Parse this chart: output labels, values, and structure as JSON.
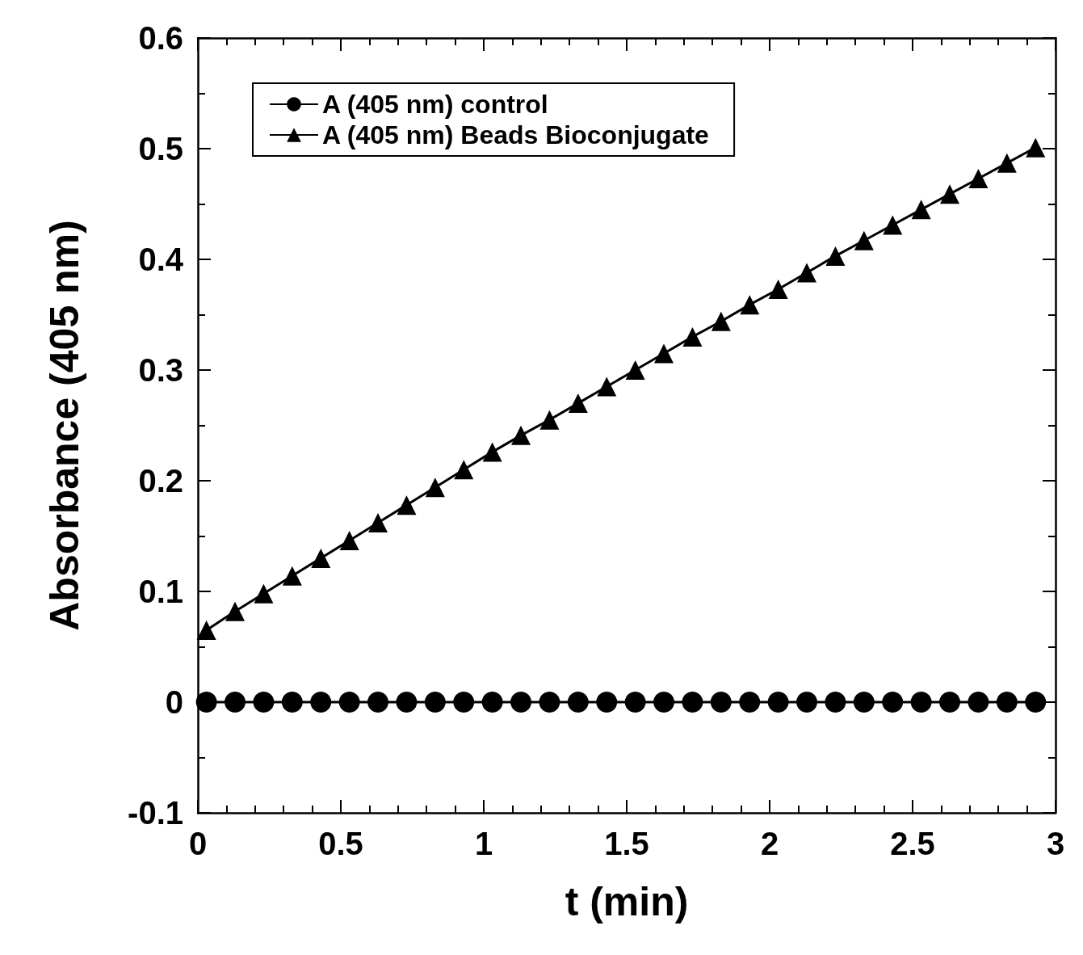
{
  "chart_data": {
    "type": "line",
    "xlabel": "t (min)",
    "ylabel": "Absorbance (405 nm)",
    "x": [
      0.03,
      0.13,
      0.23,
      0.33,
      0.43,
      0.53,
      0.63,
      0.73,
      0.83,
      0.93,
      1.03,
      1.13,
      1.23,
      1.33,
      1.43,
      1.53,
      1.63,
      1.73,
      1.83,
      1.93,
      2.03,
      2.13,
      2.23,
      2.33,
      2.43,
      2.53,
      2.63,
      2.73,
      2.83,
      2.93
    ],
    "series": [
      {
        "name": "A (405 nm) control",
        "color": "#000000",
        "marker": "circle",
        "values": [
          0,
          0,
          0,
          0,
          0,
          0,
          0,
          0,
          0,
          0,
          0,
          0,
          0,
          0,
          0,
          0,
          0,
          0,
          0,
          0,
          0,
          0,
          0,
          0,
          0,
          0,
          0,
          0,
          0,
          0
        ]
      },
      {
        "name": "A (405 nm) Beads Bioconjugate",
        "color": "#000000",
        "marker": "triangle",
        "values": [
          0.065,
          0.082,
          0.098,
          0.114,
          0.13,
          0.146,
          0.162,
          0.178,
          0.194,
          0.21,
          0.226,
          0.241,
          0.255,
          0.27,
          0.285,
          0.3,
          0.315,
          0.33,
          0.344,
          0.359,
          0.373,
          0.388,
          0.403,
          0.417,
          0.431,
          0.445,
          0.459,
          0.473,
          0.487,
          0.501
        ]
      }
    ],
    "xlim": [
      0,
      3
    ],
    "xticks": [
      0,
      0.5,
      1,
      1.5,
      2,
      2.5,
      3
    ],
    "ylim": [
      -0.1,
      0.6
    ],
    "yticks": [
      -0.1,
      0,
      0.1,
      0.2,
      0.3,
      0.4,
      0.5,
      0.6
    ],
    "legend": "top left",
    "grid": false,
    "line_style": "solid"
  }
}
